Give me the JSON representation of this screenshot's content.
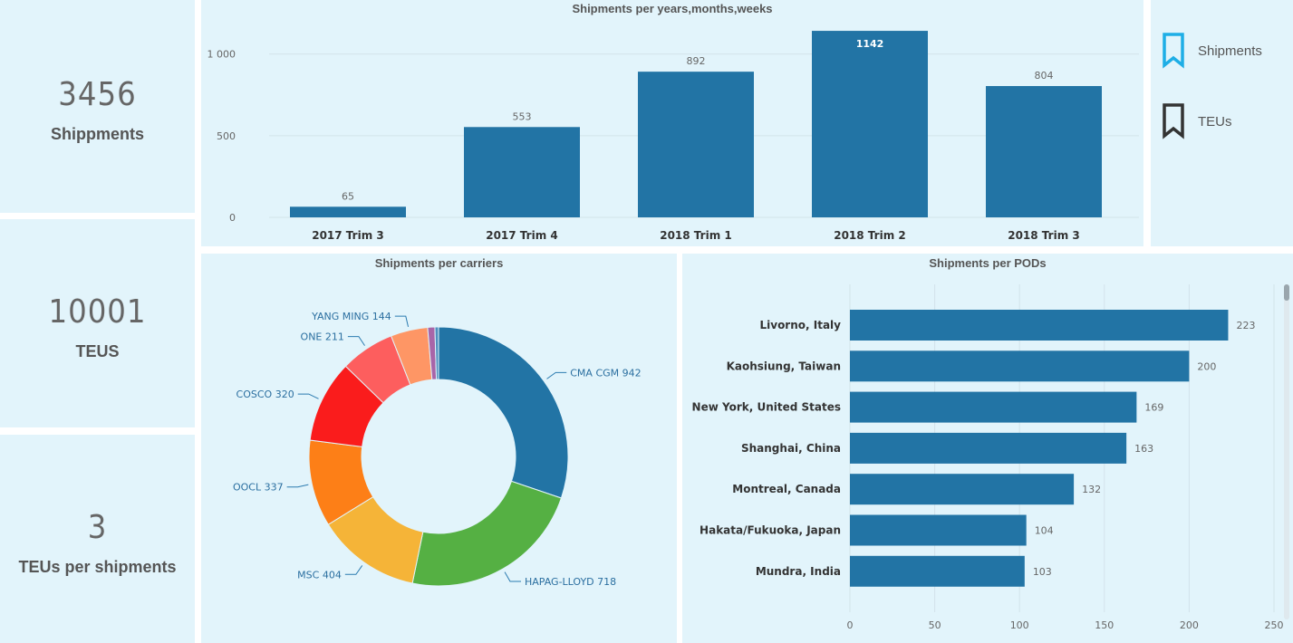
{
  "kpis": [
    {
      "value": "3456",
      "label": "Shippments"
    },
    {
      "value": "10001",
      "label": "TEUS"
    },
    {
      "value": "3",
      "label": "TEUs per shipments"
    }
  ],
  "legend": {
    "items": [
      {
        "label": "Shipments",
        "color": "#1eaee6"
      },
      {
        "label": "TEUs",
        "color": "#333333"
      }
    ]
  },
  "chart_data": [
    {
      "type": "bar",
      "title": "Shipments per years,months,weeks",
      "categories": [
        "2017 Trim 3",
        "2017 Trim 4",
        "2018 Trim 1",
        "2018 Trim 2",
        "2018 Trim 3"
      ],
      "values": [
        65,
        553,
        892,
        1142,
        804
      ],
      "data_labels": [
        "65",
        "553",
        "892",
        "1142",
        "804"
      ],
      "yticks": [
        "0",
        "500",
        "1 000"
      ],
      "ylim": [
        0,
        1220
      ],
      "color": "#2274a5",
      "grid": true
    },
    {
      "type": "pie",
      "title": "Shipments per carriers",
      "donut": true,
      "slices": [
        {
          "label": "CMA CGM 942",
          "value": 942,
          "color": "#2274a5"
        },
        {
          "label": "HAPAG-LLOYD 718",
          "value": 718,
          "color": "#55b043"
        },
        {
          "label": "MSC 404",
          "value": 404,
          "color": "#f5b438"
        },
        {
          "label": "OOCL 337",
          "value": 337,
          "color": "#fd7f17"
        },
        {
          "label": "COSCO 320",
          "value": 320,
          "color": "#fa1c1c"
        },
        {
          "label": "ONE 211",
          "value": 211,
          "color": "#fd5e5e"
        },
        {
          "label": "YANG MING 144",
          "value": 144,
          "color": "#fe9665"
        },
        {
          "label": "",
          "value": 28,
          "color": "#a865a8"
        },
        {
          "label": "",
          "value": 14,
          "color": "#4e8fbf"
        }
      ]
    },
    {
      "type": "bar",
      "orientation": "horizontal",
      "title": "Shipments per PODs",
      "categories": [
        "Livorno, Italy",
        "Kaohsiung, Taiwan",
        "New York, United States",
        "Shanghai, China",
        "Montreal, Canada",
        "Hakata/Fukuoka, Japan",
        "Mundra, India"
      ],
      "values": [
        223,
        200,
        169,
        163,
        132,
        104,
        103
      ],
      "data_labels": [
        "223",
        "200",
        "169",
        "163",
        "132",
        "104",
        "103"
      ],
      "xticks": [
        "0",
        "50",
        "100",
        "150",
        "200",
        "250"
      ],
      "xlim": [
        0,
        250
      ],
      "color": "#2274a5",
      "grid": true
    }
  ]
}
